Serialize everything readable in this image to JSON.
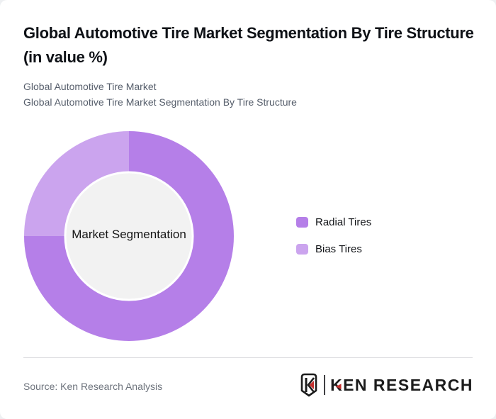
{
  "page": {
    "title": "Global Automotive Tire Market Segmentation By Tire Structure (in value %)",
    "subtitles": [
      "Global Automotive Tire Market",
      "Global Automotive Tire Market Segmentation By Tire Structure"
    ]
  },
  "chart_data": {
    "type": "pie",
    "variant": "donut",
    "title": "Global Automotive Tire Market Segmentation By Tire Structure (in value %)",
    "center_label": "Market Segmentation",
    "categories": [
      "Radial Tires",
      "Bias Tires"
    ],
    "values": [
      75,
      25
    ],
    "unit": "value %",
    "colors": [
      "#b57fe8",
      "#cba4ee"
    ],
    "start_angle_deg": 0,
    "direction": "clockwise",
    "legend_position": "right",
    "inner_circle_color": "#f2f2f2",
    "inner_circle_border": "#ffffff",
    "inner_radius_ratio": 0.61
  },
  "footer": {
    "source": "Source: Ken Research Analysis",
    "logo_letter_k": "K",
    "logo_triangle": "◄",
    "logo_text_rest": "EN RESEARCH",
    "logo_accent_color": "#c5312f",
    "logo_text_color": "#1c1c1c"
  }
}
